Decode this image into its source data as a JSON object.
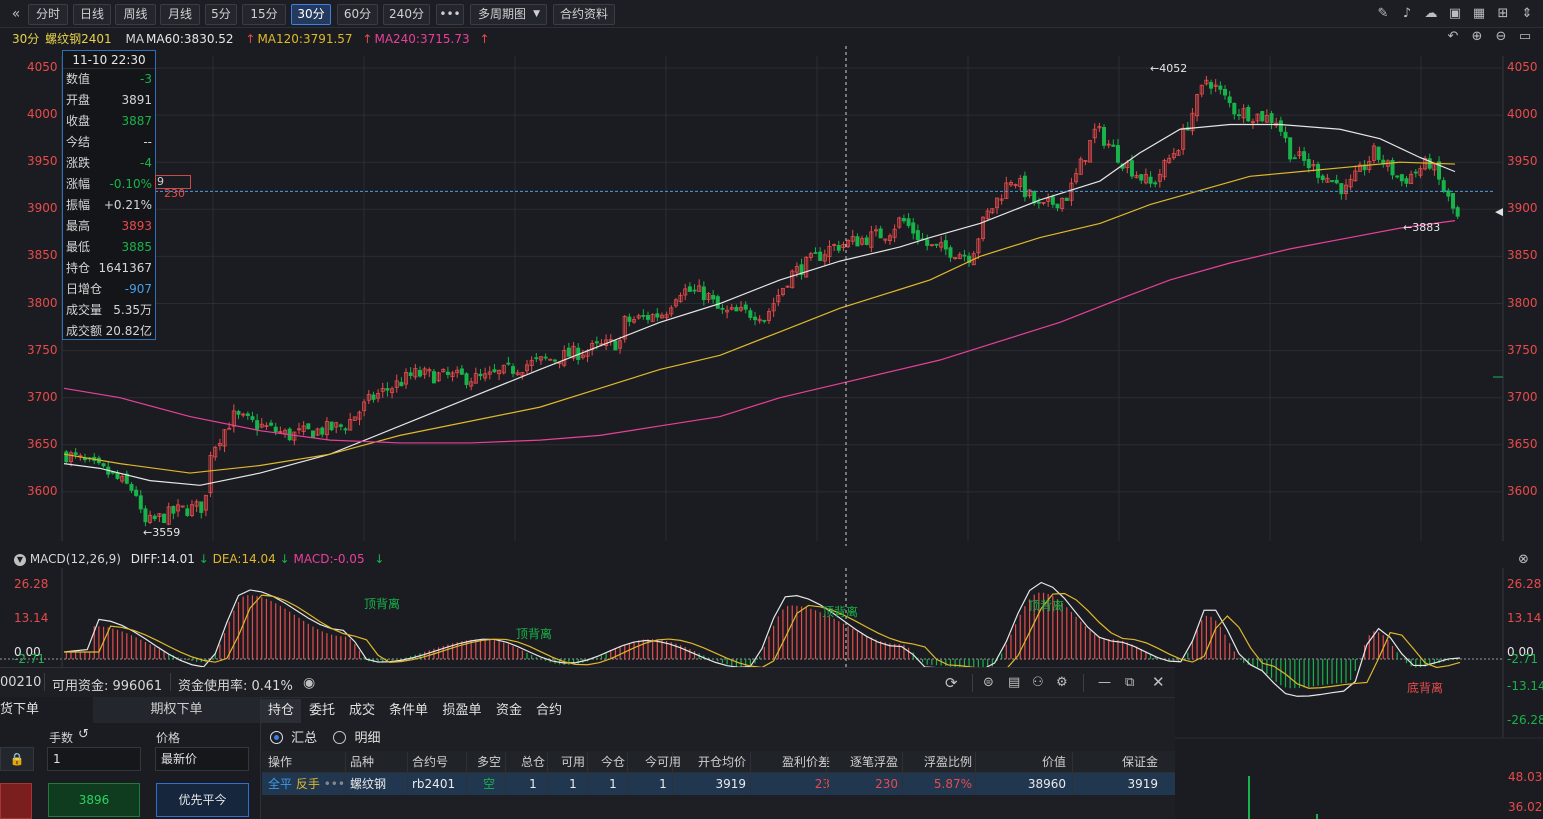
{
  "toolbar": {
    "collapse_icon": "double-chevron-left-icon",
    "periods": [
      "分时",
      "日线",
      "周线",
      "月线",
      "5分",
      "15分",
      "30分",
      "60分",
      "240分"
    ],
    "active_period": "30分",
    "more_label": "•••",
    "multi_period_label": "多周期图",
    "contract_info_label": "合约资料",
    "right_icons": [
      "pen-icon",
      "bell-icon",
      "cloud-icon",
      "camera-icon",
      "calculator-icon",
      "grid-icon",
      "vertical-arrows-icon"
    ],
    "second_row_icons": [
      "undo-icon",
      "zoom-in-icon",
      "zoom-out-icon",
      "window-icon"
    ]
  },
  "legend": {
    "period": "30分",
    "name": "螺纹钢2401",
    "ma_label": "MA",
    "ma60": "MA60:3830.52",
    "ma120": "MA120:3791.57",
    "ma240": "MA240:3715.73",
    "arrow": "↑"
  },
  "tooltip": {
    "datetime": "11-10 22:30",
    "rows": [
      {
        "label": "数值",
        "value": "-3",
        "color": "#18b34a"
      },
      {
        "label": "开盘",
        "value": "3891",
        "color": "#d6d6d6"
      },
      {
        "label": "收盘",
        "value": "3887",
        "color": "#18b34a"
      },
      {
        "label": "今结",
        "value": "--",
        "color": "#d6d6d6"
      },
      {
        "label": "涨跌",
        "value": "-4",
        "color": "#18b34a"
      },
      {
        "label": "涨幅",
        "value": "-0.10%",
        "color": "#18b34a"
      },
      {
        "label": "振幅",
        "value": "+0.21%",
        "color": "#d6d6d6"
      },
      {
        "label": "最高",
        "value": "3893",
        "color": "#e84b4b"
      },
      {
        "label": "最低",
        "value": "3885",
        "color": "#18b34a"
      },
      {
        "label": "持仓",
        "value": "1641367",
        "color": "#d6d6d6"
      },
      {
        "label": "日增仓",
        "value": "-907",
        "color": "#4a9ee8"
      },
      {
        "label": "成交量",
        "value": "5.35万",
        "color": "#d6d6d6"
      },
      {
        "label": "成交额",
        "value": "20.82亿",
        "color": "#d6d6d6"
      }
    ]
  },
  "price_tag": {
    "partial": "9",
    "value": "230"
  },
  "price_axis": [
    "4050",
    "4000",
    "3950",
    "3900",
    "3850",
    "3800",
    "3750",
    "3700",
    "3650",
    "3600"
  ],
  "annotations": {
    "high": "←4052",
    "low": "←3559",
    "recent_low": "←3883"
  },
  "macd": {
    "title": "MACD(12,26,9)",
    "diff": "DIFF:14.01",
    "dea": "DEA:14.04",
    "macd": "MACD:-0.05",
    "down_arrow": "↓",
    "axis": [
      "26.28",
      "13.14",
      "0.00",
      "-2.71",
      "-13.14",
      "-26.28"
    ],
    "current_value": "-2.71",
    "divergence_labels": [
      "顶背离",
      "顶背离",
      "顶背离",
      "顶背离",
      "底背离"
    ],
    "volume_axis": [
      "48.03",
      "36.02"
    ]
  },
  "account": {
    "partial_id": "00210",
    "available": "可用资金: 996061",
    "usage": "资金使用率: 0.41%",
    "icons": [
      "eye-icon",
      "refresh-icon",
      "chat-icon",
      "card-icon",
      "user-settings-icon",
      "gear-icon",
      "minimize-icon",
      "restore-icon",
      "close-icon"
    ]
  },
  "order_panel": {
    "tab_partial": "货下单",
    "option_tab": "期权下单",
    "qty_label": "手数",
    "price_label": "价格",
    "qty_value": "1",
    "price_value": "最新价",
    "buy_price": "3896",
    "priority_close": "优先平今"
  },
  "tabs": [
    "持仓",
    "委托",
    "成交",
    "条件单",
    "损盈单",
    "资金",
    "合约"
  ],
  "view_options": {
    "summary": "汇总",
    "detail": "明细",
    "selected": "汇总"
  },
  "table": {
    "columns": [
      "操作",
      "品种",
      "合约号",
      "多空",
      "总仓",
      "可用",
      "今仓",
      "今可用",
      "开仓均价",
      "盈利价差",
      "逐笔浮盈",
      "浮盈比例",
      "价值",
      "保证金"
    ],
    "rows": [
      {
        "action_close": "全平",
        "action_reverse": "反手",
        "more": "•••",
        "product": "螺纹钢",
        "contract": "rb2401",
        "direction": "空",
        "total": "1",
        "available": "1",
        "today": "1",
        "today_available": "1",
        "avg_price": "3919",
        "price_diff": "23",
        "float_profit": "230",
        "profit_ratio": "5.87%",
        "value": "38960",
        "margin": "3919"
      }
    ]
  },
  "colors": {
    "up": "#e84b4b",
    "down": "#18b34a",
    "ma60": "#e6e6e6",
    "ma120": "#e0b82a",
    "ma240": "#e8409a",
    "accent": "#3d7fe6"
  }
}
